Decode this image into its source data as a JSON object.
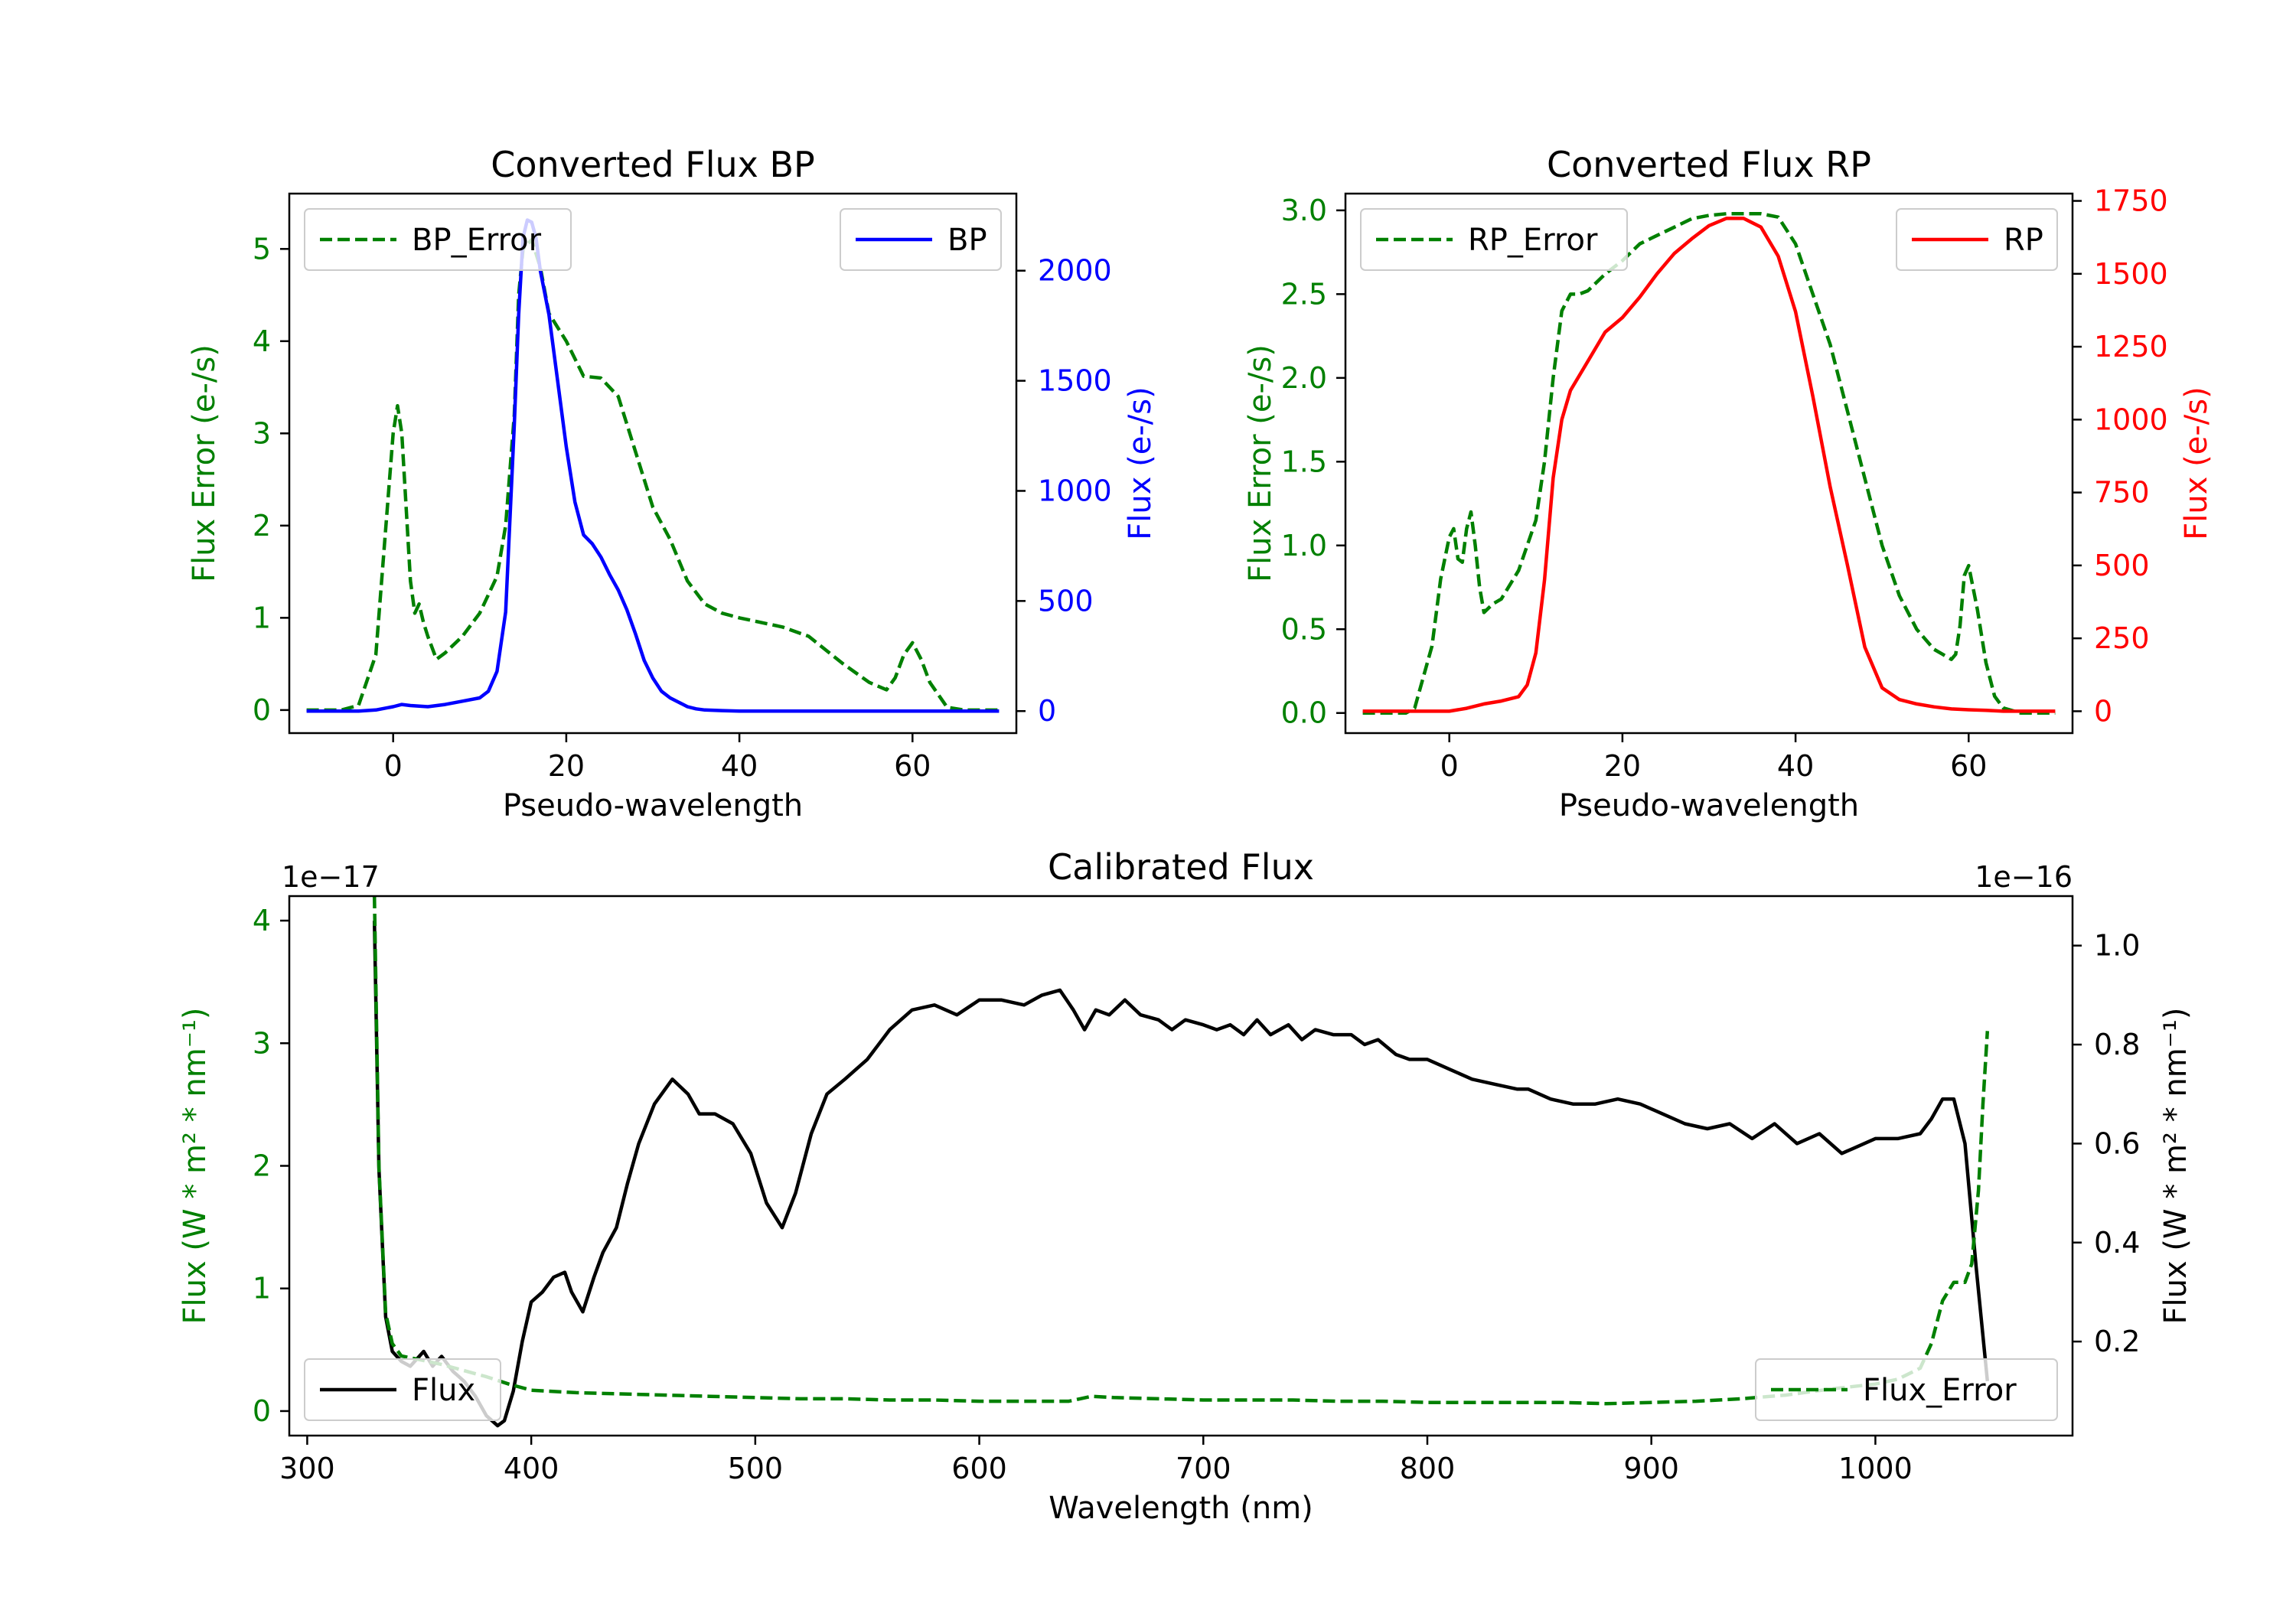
{
  "chart_data": [
    {
      "id": "bp",
      "type": "line",
      "title": "Converted Flux BP",
      "xlabel": "Pseudo-wavelength",
      "ylabel_left": "Flux Error (e-/s)",
      "ylabel_right": "Flux (e-/s)",
      "xlim": [
        -12,
        72
      ],
      "ylim_left": [
        -0.25,
        5.6
      ],
      "ylim_right": [
        -100,
        2350
      ],
      "xticks": [
        0,
        20,
        40,
        60
      ],
      "yticks_left": [
        0,
        1,
        2,
        3,
        4,
        5
      ],
      "yticks_right": [
        0,
        500,
        1000,
        1500,
        2000
      ],
      "series": [
        {
          "name": "BP_Error",
          "axis": "left",
          "color": "#008000",
          "dash": true,
          "x": [
            -10,
            -6,
            -4,
            -2,
            -1,
            0,
            0.5,
            1,
            2,
            2.5,
            3,
            3.5,
            4,
            5,
            6,
            8,
            10,
            12,
            13,
            14,
            14.5,
            15,
            16,
            17,
            18,
            20,
            22,
            24,
            26,
            28,
            30,
            32,
            34,
            36,
            38,
            40,
            45,
            48,
            52,
            55,
            57,
            58,
            59,
            60,
            61,
            62,
            64,
            66,
            68,
            70
          ],
          "y": [
            0,
            0,
            0.05,
            0.6,
            1.8,
            3.0,
            3.3,
            3.0,
            1.4,
            1.05,
            1.15,
            0.95,
            0.8,
            0.55,
            0.62,
            0.8,
            1.05,
            1.45,
            2.0,
            3.2,
            4.5,
            5.0,
            5.1,
            4.8,
            4.3,
            4.0,
            3.62,
            3.6,
            3.4,
            2.8,
            2.2,
            1.85,
            1.4,
            1.15,
            1.05,
            1.0,
            0.9,
            0.8,
            0.5,
            0.3,
            0.22,
            0.35,
            0.6,
            0.73,
            0.55,
            0.3,
            0.03,
            0,
            0,
            0
          ]
        },
        {
          "name": "BP",
          "axis": "right",
          "color": "#0000ff",
          "dash": false,
          "x": [
            -10,
            -4,
            -2,
            0,
            1,
            2,
            4,
            6,
            8,
            10,
            11,
            12,
            13,
            14,
            14.5,
            15,
            15.5,
            16,
            16.5,
            17,
            18,
            19,
            20,
            21,
            22,
            23,
            24,
            25,
            26,
            27,
            28,
            29,
            30,
            31,
            32,
            33,
            34,
            35,
            36,
            38,
            40,
            45,
            50,
            55,
            60,
            65,
            70
          ],
          "y": [
            0,
            0,
            5,
            20,
            30,
            25,
            20,
            30,
            45,
            60,
            90,
            180,
            450,
            1300,
            1800,
            2150,
            2230,
            2220,
            2150,
            2000,
            1800,
            1500,
            1200,
            950,
            800,
            760,
            700,
            620,
            550,
            460,
            350,
            230,
            150,
            90,
            60,
            40,
            20,
            10,
            5,
            2,
            0,
            0,
            0,
            0,
            0,
            0,
            0
          ]
        }
      ],
      "legend": [
        {
          "label": "BP_Error",
          "location": "upper left"
        },
        {
          "label": "BP",
          "location": "upper right"
        }
      ]
    },
    {
      "id": "rp",
      "type": "line",
      "title": "Converted Flux RP",
      "xlabel": "Pseudo-wavelength",
      "ylabel_left": "Flux Error (e-/s)",
      "ylabel_right": "Flux (e-/s)",
      "xlim": [
        -12,
        72
      ],
      "ylim_left": [
        -0.12,
        3.1
      ],
      "ylim_right": [
        -75,
        1775
      ],
      "xticks": [
        0,
        20,
        40,
        60
      ],
      "yticks_left": [
        0.0,
        0.5,
        1.0,
        1.5,
        2.0,
        2.5,
        3.0
      ],
      "yticks_right": [
        0,
        250,
        500,
        750,
        1000,
        1250,
        1500,
        1750
      ],
      "series": [
        {
          "name": "RP_Error",
          "axis": "left",
          "color": "#008000",
          "dash": true,
          "x": [
            -10,
            -5,
            -4,
            -2,
            -1,
            0,
            0.5,
            1,
            1.5,
            2,
            2.5,
            3,
            3.5,
            4,
            5,
            6,
            8,
            10,
            11,
            12,
            13,
            14,
            15,
            16,
            18,
            20,
            22,
            24,
            26,
            28,
            30,
            32,
            34,
            36,
            38,
            40,
            42,
            44,
            46,
            48,
            50,
            52,
            54,
            56,
            57,
            58,
            58.5,
            59,
            59.5,
            60,
            61,
            62,
            63,
            64,
            66,
            68,
            70
          ],
          "y": [
            0,
            0,
            0.03,
            0.4,
            0.8,
            1.05,
            1.1,
            0.92,
            0.9,
            1.1,
            1.2,
            1.0,
            0.75,
            0.6,
            0.65,
            0.68,
            0.85,
            1.15,
            1.5,
            2.0,
            2.4,
            2.5,
            2.5,
            2.52,
            2.62,
            2.7,
            2.8,
            2.85,
            2.9,
            2.95,
            2.97,
            2.98,
            2.98,
            2.98,
            2.96,
            2.8,
            2.5,
            2.2,
            1.8,
            1.4,
            1.0,
            0.7,
            0.5,
            0.38,
            0.35,
            0.32,
            0.35,
            0.52,
            0.82,
            0.88,
            0.62,
            0.3,
            0.1,
            0.03,
            0,
            0,
            0
          ]
        },
        {
          "name": "RP",
          "axis": "right",
          "color": "#ff0000",
          "dash": false,
          "x": [
            -10,
            -5,
            0,
            2,
            4,
            6,
            8,
            9,
            10,
            11,
            12,
            13,
            14,
            16,
            18,
            20,
            22,
            24,
            26,
            28,
            30,
            32,
            34,
            36,
            38,
            40,
            42,
            44,
            46,
            48,
            50,
            52,
            54,
            56,
            58,
            60,
            62,
            64,
            66,
            68,
            70
          ],
          "y": [
            0,
            0,
            0,
            10,
            25,
            35,
            50,
            90,
            200,
            450,
            800,
            1000,
            1100,
            1200,
            1300,
            1350,
            1420,
            1500,
            1570,
            1620,
            1665,
            1690,
            1690,
            1660,
            1560,
            1370,
            1080,
            770,
            500,
            220,
            80,
            40,
            25,
            15,
            8,
            5,
            3,
            0,
            0,
            0,
            0
          ]
        }
      ],
      "legend": [
        {
          "label": "RP_Error",
          "location": "upper left"
        },
        {
          "label": "RP",
          "location": "upper right"
        }
      ]
    },
    {
      "id": "cal",
      "type": "line",
      "title": "Calibrated Flux",
      "xlabel": "Wavelength (nm)",
      "ylabel_left": "Flux (W * m² * nm⁻¹)",
      "ylabel_right": "Flux (W * m² * nm⁻¹)",
      "offset_left": "1e−17",
      "offset_right": "1e−16",
      "xlim": [
        292,
        1088
      ],
      "ylim_left": [
        -0.2,
        4.2
      ],
      "ylim_right": [
        0.01,
        1.1
      ],
      "xticks": [
        300,
        400,
        500,
        600,
        700,
        800,
        900,
        1000
      ],
      "yticks_left": [
        0,
        1,
        2,
        3,
        4
      ],
      "yticks_right": [
        0.2,
        0.4,
        0.6,
        0.8,
        1.0
      ],
      "series": [
        {
          "name": "Flux",
          "axis": "right",
          "color": "#000000",
          "dash": false,
          "x": [
            330,
            332,
            335,
            338,
            342,
            346,
            352,
            356,
            360,
            365,
            370,
            375,
            380,
            385,
            388,
            392,
            396,
            400,
            405,
            410,
            415,
            418,
            423,
            428,
            432,
            438,
            443,
            448,
            455,
            463,
            470,
            475,
            482,
            490,
            498,
            505,
            512,
            518,
            525,
            532,
            540,
            550,
            560,
            570,
            580,
            590,
            600,
            610,
            620,
            628,
            636,
            642,
            647,
            652,
            658,
            665,
            672,
            680,
            686,
            692,
            700,
            706,
            712,
            718,
            724,
            730,
            738,
            744,
            750,
            758,
            766,
            772,
            778,
            786,
            792,
            800,
            810,
            820,
            830,
            840,
            845,
            855,
            865,
            875,
            885,
            895,
            905,
            915,
            925,
            935,
            945,
            955,
            965,
            975,
            985,
            990,
            1000,
            1010,
            1020,
            1025,
            1030,
            1035,
            1040,
            1045,
            1050
          ],
          "y": [
            1.05,
            0.55,
            0.25,
            0.18,
            0.16,
            0.15,
            0.18,
            0.15,
            0.17,
            0.14,
            0.12,
            0.09,
            0.05,
            0.03,
            0.04,
            0.1,
            0.2,
            0.28,
            0.3,
            0.33,
            0.34,
            0.3,
            0.26,
            0.33,
            0.38,
            0.43,
            0.52,
            0.6,
            0.68,
            0.73,
            0.7,
            0.66,
            0.66,
            0.64,
            0.58,
            0.48,
            0.43,
            0.5,
            0.62,
            0.7,
            0.73,
            0.77,
            0.83,
            0.87,
            0.88,
            0.86,
            0.89,
            0.89,
            0.88,
            0.9,
            0.91,
            0.87,
            0.83,
            0.87,
            0.86,
            0.89,
            0.86,
            0.85,
            0.83,
            0.85,
            0.84,
            0.83,
            0.84,
            0.82,
            0.85,
            0.82,
            0.84,
            0.81,
            0.83,
            0.82,
            0.82,
            0.8,
            0.81,
            0.78,
            0.77,
            0.77,
            0.75,
            0.73,
            0.72,
            0.71,
            0.71,
            0.69,
            0.68,
            0.68,
            0.69,
            0.68,
            0.66,
            0.64,
            0.63,
            0.64,
            0.61,
            0.64,
            0.6,
            0.62,
            0.58,
            0.59,
            0.61,
            0.61,
            0.62,
            0.65,
            0.69,
            0.69,
            0.6,
            0.35,
            0.12
          ]
        },
        {
          "name": "Flux_Error",
          "axis": "left",
          "color": "#008000",
          "dash": true,
          "x": [
            330,
            332,
            335,
            338,
            342,
            350,
            360,
            370,
            380,
            390,
            400,
            420,
            440,
            460,
            480,
            500,
            520,
            540,
            560,
            580,
            600,
            620,
            630,
            640,
            645,
            650,
            660,
            680,
            700,
            720,
            740,
            760,
            780,
            800,
            820,
            840,
            860,
            880,
            900,
            920,
            940,
            960,
            980,
            1000,
            1010,
            1020,
            1025,
            1030,
            1035,
            1040,
            1043,
            1046,
            1048,
            1050
          ],
          "y": [
            4.2,
            2.0,
            0.8,
            0.55,
            0.45,
            0.42,
            0.38,
            0.33,
            0.28,
            0.22,
            0.17,
            0.15,
            0.14,
            0.13,
            0.12,
            0.11,
            0.1,
            0.1,
            0.09,
            0.09,
            0.08,
            0.08,
            0.08,
            0.08,
            0.1,
            0.12,
            0.11,
            0.1,
            0.09,
            0.09,
            0.09,
            0.08,
            0.08,
            0.07,
            0.07,
            0.07,
            0.07,
            0.06,
            0.07,
            0.08,
            0.1,
            0.13,
            0.18,
            0.22,
            0.26,
            0.35,
            0.55,
            0.9,
            1.05,
            1.05,
            1.2,
            1.8,
            2.5,
            3.1
          ]
        }
      ],
      "legend": [
        {
          "label": "Flux",
          "location": "lower left"
        },
        {
          "label": "Flux_Error",
          "location": "lower right"
        }
      ]
    }
  ]
}
